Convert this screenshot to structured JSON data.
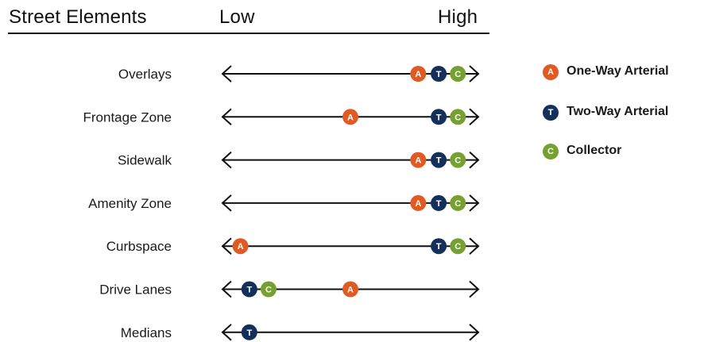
{
  "header": {
    "title": "Street Elements",
    "low": "Low",
    "high": "High"
  },
  "legend": [
    {
      "code": "A",
      "label": "One-Way Arterial",
      "color": "#e05a24"
    },
    {
      "code": "T",
      "label": "Two-Way Arterial",
      "color": "#14305a"
    },
    {
      "code": "C",
      "label": "Collector",
      "color": "#76a030"
    }
  ],
  "rows": [
    {
      "label": "Overlays",
      "markers": [
        {
          "code": "A",
          "level": 0.765
        },
        {
          "code": "T",
          "level": 0.845
        },
        {
          "code": "C",
          "level": 0.92
        }
      ]
    },
    {
      "label": "Frontage Zone",
      "markers": [
        {
          "code": "A",
          "level": 0.5
        },
        {
          "code": "T",
          "level": 0.845
        },
        {
          "code": "C",
          "level": 0.92
        }
      ]
    },
    {
      "label": "Sidewalk",
      "markers": [
        {
          "code": "A",
          "level": 0.765
        },
        {
          "code": "T",
          "level": 0.845
        },
        {
          "code": "C",
          "level": 0.92
        }
      ]
    },
    {
      "label": "Amenity Zone",
      "markers": [
        {
          "code": "A",
          "level": 0.765
        },
        {
          "code": "T",
          "level": 0.845
        },
        {
          "code": "C",
          "level": 0.92
        }
      ]
    },
    {
      "label": "Curbspace",
      "markers": [
        {
          "code": "A",
          "level": 0.07
        },
        {
          "code": "T",
          "level": 0.845
        },
        {
          "code": "C",
          "level": 0.92
        }
      ]
    },
    {
      "label": "Drive Lanes",
      "markers": [
        {
          "code": "T",
          "level": 0.105
        },
        {
          "code": "C",
          "level": 0.18
        },
        {
          "code": "A",
          "level": 0.5
        }
      ]
    },
    {
      "label": "Medians",
      "markers": [
        {
          "code": "T",
          "level": 0.105
        }
      ]
    }
  ]
}
